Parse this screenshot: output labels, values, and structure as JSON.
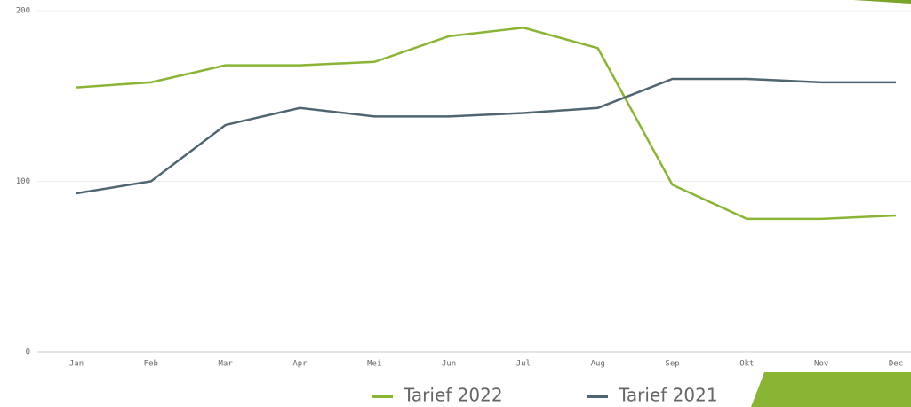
{
  "chart_data": {
    "type": "line",
    "categories": [
      "Jan",
      "Feb",
      "Mar",
      "Apr",
      "Mei",
      "Jun",
      "Jul",
      "Aug",
      "Sep",
      "Okt",
      "Nov",
      "Dec"
    ],
    "series": [
      {
        "name": "Tarief 2022",
        "color": "#8ab534",
        "values": [
          155,
          158,
          168,
          168,
          170,
          185,
          190,
          178,
          98,
          78,
          78,
          80
        ]
      },
      {
        "name": "Tarief 2021",
        "color": "#4f6672",
        "values": [
          93,
          100,
          133,
          143,
          138,
          138,
          140,
          143,
          160,
          160,
          158,
          158
        ]
      }
    ],
    "ylim": [
      0,
      200
    ],
    "yticks": [
      0,
      100,
      200
    ],
    "grid": true,
    "legend": "bottom"
  }
}
